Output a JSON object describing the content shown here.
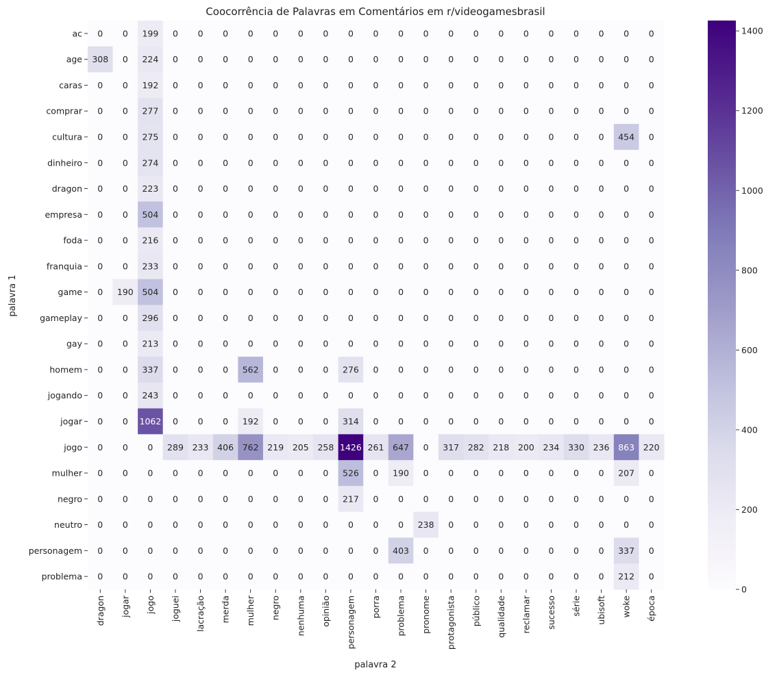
{
  "chart_data": {
    "type": "heatmap",
    "title": "Coocorrência de Palavras em Comentários em r/videogamesbrasil",
    "xlabel": "palavra 2",
    "ylabel": "palavra 1",
    "x_categories": [
      "dragon",
      "jogar",
      "jogo",
      "joguei",
      "lacração",
      "merda",
      "mulher",
      "negro",
      "nenhuma",
      "opinião",
      "personagem",
      "porra",
      "problema",
      "pronome",
      "protagonista",
      "público",
      "qualidade",
      "reclamar",
      "sucesso",
      "série",
      "ubisoft",
      "woke",
      "época"
    ],
    "y_categories": [
      "ac",
      "age",
      "caras",
      "comprar",
      "cultura",
      "dinheiro",
      "dragon",
      "empresa",
      "foda",
      "franquia",
      "game",
      "gameplay",
      "gay",
      "homem",
      "jogando",
      "jogar",
      "jogo",
      "mulher",
      "negro",
      "neutro",
      "personagem",
      "problema"
    ],
    "values": [
      [
        0,
        0,
        199,
        0,
        0,
        0,
        0,
        0,
        0,
        0,
        0,
        0,
        0,
        0,
        0,
        0,
        0,
        0,
        0,
        0,
        0,
        0,
        0
      ],
      [
        308,
        0,
        224,
        0,
        0,
        0,
        0,
        0,
        0,
        0,
        0,
        0,
        0,
        0,
        0,
        0,
        0,
        0,
        0,
        0,
        0,
        0,
        0
      ],
      [
        0,
        0,
        192,
        0,
        0,
        0,
        0,
        0,
        0,
        0,
        0,
        0,
        0,
        0,
        0,
        0,
        0,
        0,
        0,
        0,
        0,
        0,
        0
      ],
      [
        0,
        0,
        277,
        0,
        0,
        0,
        0,
        0,
        0,
        0,
        0,
        0,
        0,
        0,
        0,
        0,
        0,
        0,
        0,
        0,
        0,
        0,
        0
      ],
      [
        0,
        0,
        275,
        0,
        0,
        0,
        0,
        0,
        0,
        0,
        0,
        0,
        0,
        0,
        0,
        0,
        0,
        0,
        0,
        0,
        0,
        454,
        0
      ],
      [
        0,
        0,
        274,
        0,
        0,
        0,
        0,
        0,
        0,
        0,
        0,
        0,
        0,
        0,
        0,
        0,
        0,
        0,
        0,
        0,
        0,
        0,
        0
      ],
      [
        0,
        0,
        223,
        0,
        0,
        0,
        0,
        0,
        0,
        0,
        0,
        0,
        0,
        0,
        0,
        0,
        0,
        0,
        0,
        0,
        0,
        0,
        0
      ],
      [
        0,
        0,
        504,
        0,
        0,
        0,
        0,
        0,
        0,
        0,
        0,
        0,
        0,
        0,
        0,
        0,
        0,
        0,
        0,
        0,
        0,
        0,
        0
      ],
      [
        0,
        0,
        216,
        0,
        0,
        0,
        0,
        0,
        0,
        0,
        0,
        0,
        0,
        0,
        0,
        0,
        0,
        0,
        0,
        0,
        0,
        0,
        0
      ],
      [
        0,
        0,
        233,
        0,
        0,
        0,
        0,
        0,
        0,
        0,
        0,
        0,
        0,
        0,
        0,
        0,
        0,
        0,
        0,
        0,
        0,
        0,
        0
      ],
      [
        0,
        190,
        504,
        0,
        0,
        0,
        0,
        0,
        0,
        0,
        0,
        0,
        0,
        0,
        0,
        0,
        0,
        0,
        0,
        0,
        0,
        0,
        0
      ],
      [
        0,
        0,
        296,
        0,
        0,
        0,
        0,
        0,
        0,
        0,
        0,
        0,
        0,
        0,
        0,
        0,
        0,
        0,
        0,
        0,
        0,
        0,
        0
      ],
      [
        0,
        0,
        213,
        0,
        0,
        0,
        0,
        0,
        0,
        0,
        0,
        0,
        0,
        0,
        0,
        0,
        0,
        0,
        0,
        0,
        0,
        0,
        0
      ],
      [
        0,
        0,
        337,
        0,
        0,
        0,
        562,
        0,
        0,
        0,
        276,
        0,
        0,
        0,
        0,
        0,
        0,
        0,
        0,
        0,
        0,
        0,
        0
      ],
      [
        0,
        0,
        243,
        0,
        0,
        0,
        0,
        0,
        0,
        0,
        0,
        0,
        0,
        0,
        0,
        0,
        0,
        0,
        0,
        0,
        0,
        0,
        0
      ],
      [
        0,
        0,
        1062,
        0,
        0,
        0,
        192,
        0,
        0,
        0,
        314,
        0,
        0,
        0,
        0,
        0,
        0,
        0,
        0,
        0,
        0,
        0,
        0
      ],
      [
        0,
        0,
        0,
        289,
        233,
        406,
        762,
        219,
        205,
        258,
        1426,
        261,
        647,
        0,
        317,
        282,
        218,
        200,
        234,
        330,
        236,
        863,
        220
      ],
      [
        0,
        0,
        0,
        0,
        0,
        0,
        0,
        0,
        0,
        0,
        526,
        0,
        190,
        0,
        0,
        0,
        0,
        0,
        0,
        0,
        0,
        207,
        0
      ],
      [
        0,
        0,
        0,
        0,
        0,
        0,
        0,
        0,
        0,
        0,
        217,
        0,
        0,
        0,
        0,
        0,
        0,
        0,
        0,
        0,
        0,
        0,
        0
      ],
      [
        0,
        0,
        0,
        0,
        0,
        0,
        0,
        0,
        0,
        0,
        0,
        0,
        0,
        238,
        0,
        0,
        0,
        0,
        0,
        0,
        0,
        0,
        0
      ],
      [
        0,
        0,
        0,
        0,
        0,
        0,
        0,
        0,
        0,
        0,
        0,
        0,
        403,
        0,
        0,
        0,
        0,
        0,
        0,
        0,
        0,
        337,
        0
      ],
      [
        0,
        0,
        0,
        0,
        0,
        0,
        0,
        0,
        0,
        0,
        0,
        0,
        0,
        0,
        0,
        0,
        0,
        0,
        0,
        0,
        0,
        212,
        0
      ]
    ],
    "vmin": 0,
    "vmax": 1426,
    "colormap": "Purples",
    "colorbar_ticks": [
      0,
      200,
      400,
      600,
      800,
      1000,
      1200,
      1400
    ],
    "annotate": true,
    "grid": false
  }
}
